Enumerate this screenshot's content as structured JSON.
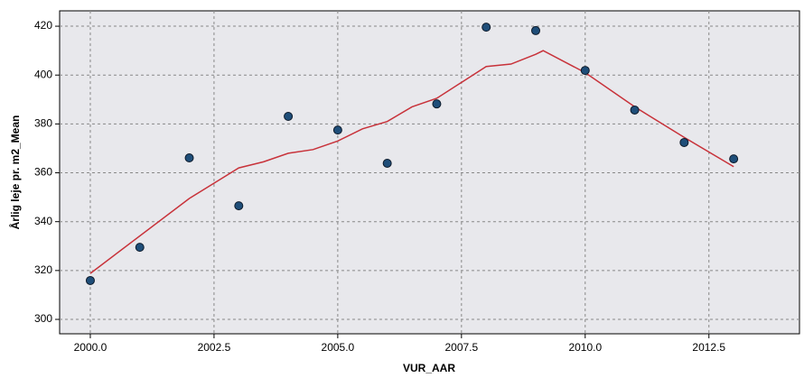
{
  "chart_data": {
    "type": "scatter",
    "x_label": "VUR_AAR",
    "y_label": "Årlig leje pr. m2_Mean",
    "points": {
      "x": [
        2000,
        2001,
        2002,
        2003,
        2004,
        2005,
        2006,
        2007,
        2008,
        2009,
        2010,
        2011,
        2012,
        2013
      ],
      "values": [
        315.9,
        329.5,
        366.1,
        346.5,
        383.1,
        377.5,
        363.9,
        388.2,
        419.6,
        418.2,
        401.9,
        385.7,
        372.4,
        365.7
      ],
      "color": "#1f4e79"
    },
    "fit_line": {
      "type": "line",
      "x": [
        2000,
        2002,
        2003,
        2003.5,
        2004,
        2004.5,
        2005,
        2005.5,
        2006,
        2006.5,
        2007,
        2007.5,
        2008,
        2008.5,
        2009,
        2009.15,
        2010,
        2011,
        2012,
        2013
      ],
      "values": [
        318.8,
        349.5,
        362,
        364.5,
        368,
        369.5,
        373,
        378,
        381,
        387,
        390.5,
        397,
        403.5,
        404.5,
        408.5,
        410,
        401,
        387,
        374.5,
        362.5
      ],
      "color": "#c8323a"
    },
    "xlim": [
      1999.38,
      2014.33
    ],
    "ylim": [
      294.1,
      426.3
    ],
    "xticks": [
      {
        "value": 2000,
        "label": "2000.0"
      },
      {
        "value": 2002.5,
        "label": "2002.5"
      },
      {
        "value": 2005,
        "label": "2005.0"
      },
      {
        "value": 2007.5,
        "label": "2007.5"
      },
      {
        "value": 2010,
        "label": "2010.0"
      },
      {
        "value": 2012.5,
        "label": "2012.5"
      }
    ],
    "yticks": [
      300,
      320,
      340,
      360,
      380,
      400,
      420
    ],
    "grid": true
  }
}
